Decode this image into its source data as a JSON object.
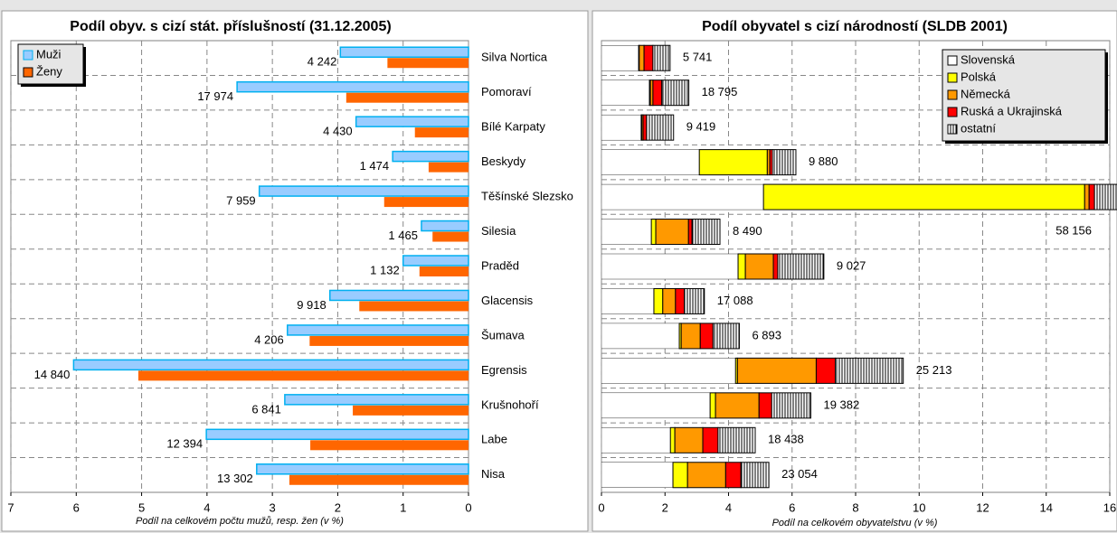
{
  "chart_data": [
    {
      "type": "bar",
      "orientation": "horizontal",
      "title": "Podíl obyv. s cizí stát. příslušností (31.12.2005)",
      "xlabel": "Podíl na celkovém počtu mužů, resp. žen (v %)",
      "categories": [
        "Silva Nortica",
        "Pomoraví",
        "Bílé Karpaty",
        "Beskydy",
        "Těšínské Slezsko",
        "Silesia",
        "Praděd",
        "Glacensis",
        "Šumava",
        "Egrensis",
        "Krušnohoří",
        "Labe",
        "Nisa"
      ],
      "series": [
        {
          "name": "Muži",
          "color": "#99ccff",
          "values": [
            1.96,
            3.54,
            1.72,
            1.16,
            3.2,
            0.72,
            1.0,
            2.12,
            2.77,
            6.04,
            2.81,
            4.01,
            3.24
          ]
        },
        {
          "name": "Ženy",
          "color": "#ff6600",
          "values": [
            1.24,
            1.87,
            0.82,
            0.61,
            1.29,
            0.55,
            0.75,
            1.67,
            2.43,
            5.05,
            1.77,
            2.42,
            2.74
          ]
        }
      ],
      "annotations": [
        "4 242",
        "17 974",
        "4 430",
        "1 474",
        "7 959",
        "1 465",
        "1 132",
        "9 918",
        "4 206",
        "14 840",
        "6 841",
        "12 394",
        "13 302"
      ],
      "xlim": [
        7,
        0
      ],
      "xticks": [
        7,
        6,
        5,
        4,
        3,
        2,
        1,
        0
      ],
      "grid": true,
      "legend": "top-left"
    },
    {
      "type": "stacked_bar",
      "orientation": "horizontal",
      "title": "Podíl obyvatel s cizí národností (SLDB 2001)",
      "xlabel": "Podíl na celkovém obyvatelstvu (v %)",
      "series": [
        {
          "name": "Slovenská",
          "color": "#ffffff",
          "values": [
            1.17,
            1.51,
            1.25,
            3.08,
            5.1,
            1.57,
            4.3,
            1.65,
            2.45,
            4.22,
            3.42,
            2.17,
            2.25
          ]
        },
        {
          "name": "Polská",
          "color": "#ffff00",
          "values": [
            0.02,
            0.03,
            0.02,
            2.14,
            10.11,
            0.14,
            0.23,
            0.28,
            0.06,
            0.06,
            0.17,
            0.14,
            0.46
          ]
        },
        {
          "name": "Německá",
          "color": "#ff9900",
          "values": [
            0.15,
            0.08,
            0.04,
            0.08,
            0.14,
            1.03,
            0.88,
            0.4,
            0.6,
            2.48,
            1.37,
            0.88,
            1.2
          ]
        },
        {
          "name": "Ruská a Ukrajinská",
          "color": "#ff0000",
          "values": [
            0.28,
            0.28,
            0.11,
            0.08,
            0.17,
            0.11,
            0.14,
            0.28,
            0.4,
            0.6,
            0.4,
            0.48,
            0.48
          ]
        },
        {
          "name": "ostatní",
          "color": "hatch",
          "values": [
            0.54,
            0.85,
            0.85,
            0.74,
            1.0,
            0.88,
            1.45,
            0.63,
            0.83,
            2.14,
            1.23,
            1.17,
            0.88
          ]
        }
      ],
      "annotations": [
        "5 741",
        "18 795",
        "9 419",
        "9 880",
        "58 156",
        "8 490",
        "9 027",
        "17 088",
        "6 893",
        "25 213",
        "19 382",
        "18 438",
        "23 054"
      ],
      "xlim": [
        0,
        16
      ],
      "xticks": [
        0,
        2,
        4,
        6,
        8,
        10,
        12,
        14,
        16
      ],
      "grid": true,
      "legend": "top-right"
    }
  ]
}
